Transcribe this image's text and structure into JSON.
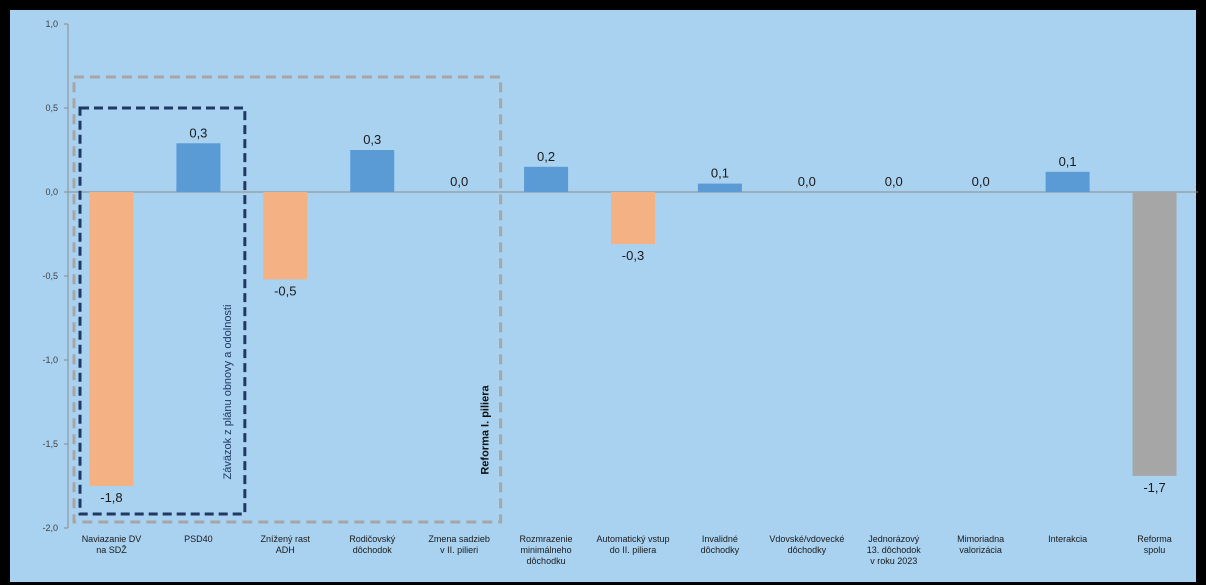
{
  "colors": {
    "frame": "#000000",
    "plot_background": "#a9d1f0",
    "positive": "#5b9bd5",
    "negative": "#f4b183",
    "total": "#a6a6a6",
    "axis_text": "#404040",
    "value_text": "#1a1a1a",
    "outer_box": "#a6a6a6",
    "inner_box": "#1f3864"
  },
  "chart_data": {
    "type": "bar",
    "title": "",
    "xlabel": "",
    "ylabel": "",
    "ylim": [
      -2.0,
      1.0
    ],
    "yticks": [
      "1,0",
      "0,5",
      "0,0",
      "-0,5",
      "-1,0",
      "-1,5",
      "-2,0"
    ],
    "ytick_values": [
      1.0,
      0.5,
      0.0,
      -0.5,
      -1.0,
      -1.5,
      -2.0
    ],
    "grid": false,
    "legend": "none",
    "categories": [
      [
        "Naviazanie DV",
        "na SDŽ"
      ],
      [
        "PSD40"
      ],
      [
        "Znížený rast",
        "ADH"
      ],
      [
        "Rodičovský",
        "dôchodok"
      ],
      [
        "Zmena sadzieb",
        "v II. pilieri"
      ],
      [
        "Rozmrazenie",
        "minimálneho",
        "dôchodku"
      ],
      [
        "Automatický vstup",
        "do II. piliera"
      ],
      [
        "Invalidné",
        "dôchodky"
      ],
      [
        "Vdovské/vdovecké",
        "dôchodky"
      ],
      [
        "Jednorázový",
        "13. dôchodok",
        "v roku 2023"
      ],
      [
        "Mimoriadna",
        "valorizácia"
      ],
      [
        "Interakcia"
      ],
      [
        "Reforma",
        "spolu"
      ]
    ],
    "values": [
      -1.75,
      0.29,
      -0.52,
      0.25,
      0.0,
      0.15,
      -0.31,
      0.05,
      0.0,
      0.0,
      0.0,
      0.12,
      -1.69
    ],
    "value_labels": [
      "-1,8",
      "0,3",
      "-0,5",
      "0,3",
      "0,0",
      "0,2",
      "-0,3",
      "0,1",
      "0,0",
      "0,0",
      "0,0",
      "0,1",
      "-1,7"
    ],
    "bar_kind": [
      "neg",
      "pos",
      "neg",
      "pos",
      "pos",
      "pos",
      "neg",
      "pos",
      "pos",
      "pos",
      "pos",
      "pos",
      "total"
    ],
    "annotations": [
      {
        "text": "Reforma I. piliera",
        "style": "gray dashed box",
        "spans": [
          0,
          4
        ]
      },
      {
        "text": "Záväzok z plánu obnovy a odolnosti",
        "style": "dark blue dashed box",
        "spans": [
          0,
          1
        ]
      }
    ]
  }
}
